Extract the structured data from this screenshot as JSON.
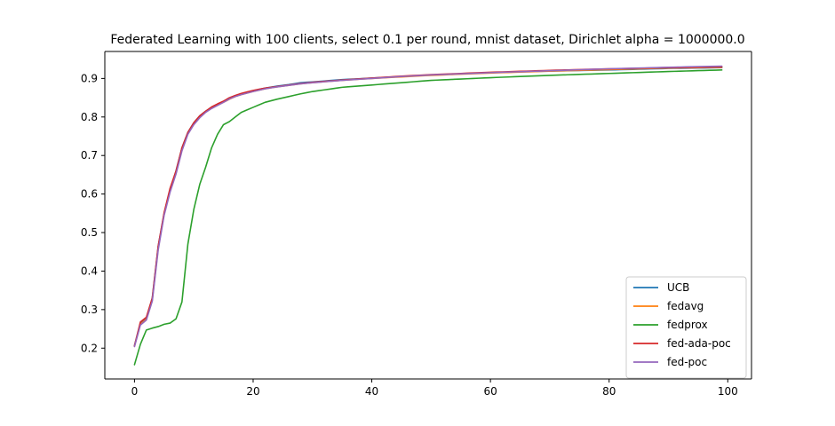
{
  "chart_data": {
    "type": "line",
    "title": "Federated Learning with 100 clients, select 0.1 per round, mnist dataset, Dirichlet alpha = 1000000.0",
    "xlabel": "",
    "ylabel": "",
    "xlim": [
      -5,
      104
    ],
    "ylim": [
      0.12,
      0.97
    ],
    "xticks": [
      0,
      20,
      40,
      60,
      80,
      100
    ],
    "yticks": [
      0.2,
      0.3,
      0.4,
      0.5,
      0.6,
      0.7,
      0.8,
      0.9
    ],
    "grid": false,
    "legend_position": "lower-right",
    "series": [
      {
        "name": "UCB",
        "color": "#1f77b4",
        "x_keypoints": [
          0,
          1,
          2,
          3,
          4,
          5,
          6,
          7,
          8,
          9,
          10,
          11,
          12,
          13,
          14,
          15,
          16,
          17,
          18,
          20,
          22,
          24,
          26,
          28,
          30,
          35,
          40,
          45,
          50,
          60,
          70,
          80,
          90,
          99
        ],
        "y_keypoints": [
          0.207,
          0.265,
          0.278,
          0.33,
          0.465,
          0.55,
          0.61,
          0.66,
          0.72,
          0.76,
          0.785,
          0.803,
          0.815,
          0.825,
          0.833,
          0.84,
          0.848,
          0.855,
          0.86,
          0.868,
          0.875,
          0.88,
          0.884,
          0.889,
          0.891,
          0.897,
          0.901,
          0.905,
          0.909,
          0.915,
          0.919,
          0.922,
          0.926,
          0.928
        ]
      },
      {
        "name": "fedavg",
        "color": "#ff7f0e",
        "x_keypoints": [
          0,
          1,
          2,
          3,
          4,
          5,
          6,
          7,
          8,
          9,
          10,
          11,
          12,
          13,
          14,
          15,
          16,
          17,
          18,
          20,
          22,
          24,
          26,
          28,
          30,
          35,
          40,
          45,
          50,
          60,
          70,
          80,
          90,
          99
        ],
        "y_keypoints": [
          0.205,
          0.262,
          0.275,
          0.325,
          0.46,
          0.548,
          0.608,
          0.655,
          0.715,
          0.757,
          0.782,
          0.8,
          0.813,
          0.823,
          0.831,
          0.838,
          0.846,
          0.853,
          0.858,
          0.866,
          0.873,
          0.878,
          0.882,
          0.886,
          0.889,
          0.895,
          0.9,
          0.904,
          0.908,
          0.914,
          0.919,
          0.923,
          0.927,
          0.929
        ]
      },
      {
        "name": "fedprox",
        "color": "#2ca02c",
        "x_keypoints": [
          0,
          1,
          2,
          3,
          4,
          5,
          6,
          7,
          8,
          9,
          10,
          11,
          12,
          13,
          14,
          15,
          16,
          17,
          18,
          20,
          22,
          24,
          26,
          28,
          30,
          35,
          40,
          45,
          50,
          60,
          70,
          80,
          90,
          99
        ],
        "y_keypoints": [
          0.157,
          0.21,
          0.247,
          0.252,
          0.256,
          0.262,
          0.265,
          0.276,
          0.32,
          0.47,
          0.56,
          0.625,
          0.67,
          0.72,
          0.755,
          0.78,
          0.788,
          0.8,
          0.812,
          0.825,
          0.838,
          0.846,
          0.853,
          0.86,
          0.866,
          0.877,
          0.883,
          0.889,
          0.895,
          0.902,
          0.908,
          0.913,
          0.918,
          0.922
        ]
      },
      {
        "name": "fed-ada-poc",
        "color": "#d62728",
        "x_keypoints": [
          0,
          1,
          2,
          3,
          4,
          5,
          6,
          7,
          8,
          9,
          10,
          11,
          12,
          13,
          14,
          15,
          16,
          17,
          18,
          20,
          22,
          24,
          26,
          28,
          30,
          35,
          40,
          45,
          50,
          60,
          70,
          80,
          90,
          99
        ],
        "y_keypoints": [
          0.206,
          0.268,
          0.28,
          0.33,
          0.465,
          0.552,
          0.615,
          0.66,
          0.72,
          0.76,
          0.785,
          0.803,
          0.815,
          0.826,
          0.834,
          0.841,
          0.85,
          0.856,
          0.861,
          0.869,
          0.875,
          0.879,
          0.883,
          0.887,
          0.89,
          0.896,
          0.901,
          0.906,
          0.91,
          0.916,
          0.921,
          0.925,
          0.928,
          0.93
        ]
      },
      {
        "name": "fed-poc",
        "color": "#9467bd",
        "x_keypoints": [
          0,
          1,
          2,
          3,
          4,
          5,
          6,
          7,
          8,
          9,
          10,
          11,
          12,
          13,
          14,
          15,
          16,
          17,
          18,
          20,
          22,
          24,
          26,
          28,
          30,
          35,
          40,
          45,
          50,
          60,
          70,
          80,
          90,
          99
        ],
        "y_keypoints": [
          0.204,
          0.26,
          0.273,
          0.322,
          0.455,
          0.545,
          0.605,
          0.652,
          0.712,
          0.755,
          0.78,
          0.798,
          0.812,
          0.822,
          0.83,
          0.838,
          0.847,
          0.853,
          0.858,
          0.866,
          0.873,
          0.878,
          0.882,
          0.886,
          0.889,
          0.895,
          0.9,
          0.905,
          0.909,
          0.915,
          0.92,
          0.925,
          0.929,
          0.932
        ]
      }
    ]
  }
}
